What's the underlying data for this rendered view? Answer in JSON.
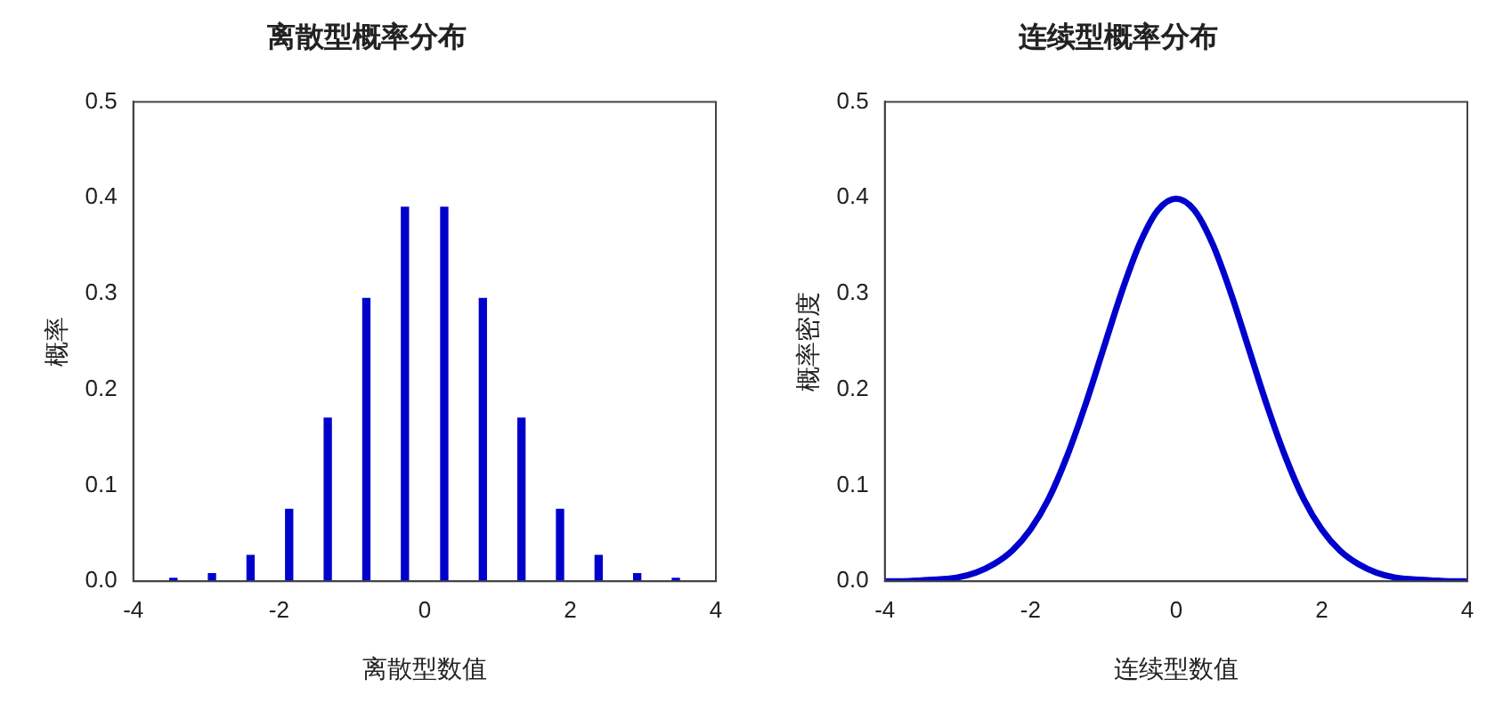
{
  "chart_data": [
    {
      "type": "bar",
      "title": "离散型概率分布",
      "xlabel": "离散型数值",
      "ylabel": "概率",
      "x": [
        -3.45,
        -2.92,
        -2.39,
        -1.86,
        -1.33,
        -0.8,
        -0.27,
        0.27,
        0.8,
        1.33,
        1.86,
        2.39,
        2.92,
        3.45
      ],
      "series": [
        {
          "color": "#0000cc",
          "values": [
            0.003,
            0.008,
            0.027,
            0.075,
            0.17,
            0.295,
            0.39,
            0.39,
            0.295,
            0.17,
            0.075,
            0.027,
            0.008,
            0.003
          ]
        }
      ],
      "xlim": [
        -4,
        4
      ],
      "xticks": [
        -4,
        -2,
        0,
        2,
        4
      ],
      "ylim": [
        0,
        0.5
      ],
      "yticks": [
        {
          "value": 0,
          "label": "0.0"
        },
        0.1,
        0.2,
        0.3,
        0.4,
        0.5
      ],
      "grid": false,
      "legend": false
    },
    {
      "type": "line",
      "title": "连续型概率分布",
      "xlabel": "连续型数值",
      "ylabel": "概率密度",
      "x": [
        -4,
        -3.75,
        -3.5,
        -3.25,
        -3,
        -2.75,
        -2.5,
        -2.25,
        -2,
        -1.75,
        -1.5,
        -1.25,
        -1,
        -0.75,
        -0.5,
        -0.25,
        0,
        0.25,
        0.5,
        0.75,
        1,
        1.25,
        1.5,
        1.75,
        2,
        2.25,
        2.5,
        2.75,
        3,
        3.25,
        3.5,
        3.75,
        4
      ],
      "series": [
        {
          "color": "#0000cc",
          "values": [
            0,
            0,
            0.001,
            0.002,
            0.004,
            0.009,
            0.018,
            0.032,
            0.054,
            0.086,
            0.13,
            0.183,
            0.242,
            0.301,
            0.352,
            0.387,
            0.399,
            0.387,
            0.352,
            0.301,
            0.242,
            0.183,
            0.13,
            0.086,
            0.054,
            0.032,
            0.018,
            0.009,
            0.004,
            0.002,
            0.001,
            0,
            0
          ]
        }
      ],
      "xlim": [
        -4,
        4
      ],
      "xticks": [
        -4,
        -2,
        0,
        2,
        4
      ],
      "ylim": [
        0,
        0.5
      ],
      "yticks": [
        {
          "value": 0,
          "label": "0.0"
        },
        0.1,
        0.2,
        0.3,
        0.4,
        0.5
      ],
      "grid": false,
      "legend": false,
      "marker": "none"
    }
  ]
}
